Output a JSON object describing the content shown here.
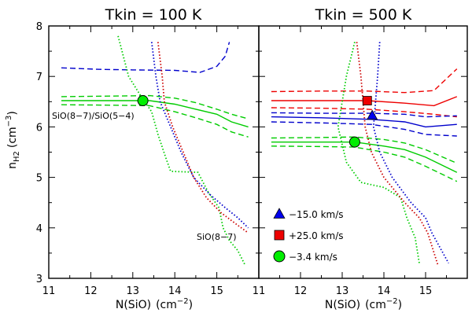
{
  "chart_data": {
    "type": "line",
    "xlabel": "N(SiO)",
    "xlabel_unit_base": "cm",
    "xlabel_unit_exp": "−2",
    "ylabel_base": "n",
    "ylabel_sub": "H2",
    "ylabel_unit_base": "cm",
    "ylabel_unit_exp": "−3",
    "xlim": [
      11,
      16
    ],
    "ylim": [
      3,
      8
    ],
    "panels": [
      {
        "title": "Tkin = 100 K",
        "xticks": [
          "11",
          "12",
          "13",
          "14",
          "15"
        ],
        "yticks": [
          "3",
          "4",
          "5",
          "6",
          "7",
          "8"
        ],
        "annotations": [
          {
            "text": "SiO(8−7)/SiO(5−4)",
            "x": 11.07,
            "y": 6.2
          },
          {
            "text": "SiO(8−7)",
            "x": 14.88,
            "y": 3.7
          }
        ],
        "series": [
          {
            "name": "blue-dashed",
            "color": "#0000cc",
            "dash": "7,4",
            "points": [
              [
                11.3,
                7.17
              ],
              [
                12.2,
                7.14
              ],
              [
                13.0,
                7.13
              ],
              [
                14.0,
                7.12
              ],
              [
                14.6,
                7.08
              ],
              [
                15.0,
                7.2
              ],
              [
                15.2,
                7.4
              ],
              [
                15.3,
                7.68
              ]
            ]
          },
          {
            "name": "green-solid",
            "color": "#00cc00",
            "dash": "",
            "points": [
              [
                11.3,
                6.52
              ],
              [
                12.5,
                6.52
              ],
              [
                13.4,
                6.52
              ],
              [
                14.0,
                6.45
              ],
              [
                14.5,
                6.35
              ],
              [
                15.0,
                6.25
              ],
              [
                15.35,
                6.1
              ],
              [
                15.75,
                6.0
              ]
            ]
          },
          {
            "name": "green-dashed-upper",
            "color": "#00cc00",
            "dash": "7,4",
            "points": [
              [
                11.3,
                6.6
              ],
              [
                12.5,
                6.61
              ],
              [
                13.4,
                6.62
              ],
              [
                14.0,
                6.57
              ],
              [
                14.5,
                6.48
              ],
              [
                15.0,
                6.35
              ],
              [
                15.35,
                6.25
              ],
              [
                15.75,
                6.16
              ]
            ]
          },
          {
            "name": "green-dashed-lower",
            "color": "#00cc00",
            "dash": "7,4",
            "points": [
              [
                11.3,
                6.44
              ],
              [
                12.5,
                6.43
              ],
              [
                13.4,
                6.42
              ],
              [
                14.0,
                6.3
              ],
              [
                14.5,
                6.18
              ],
              [
                15.0,
                6.05
              ],
              [
                15.35,
                5.9
              ],
              [
                15.75,
                5.8
              ]
            ]
          },
          {
            "name": "green-dotted",
            "color": "#00cc00",
            "dash": "1.5,2.5",
            "points": [
              [
                12.65,
                7.8
              ],
              [
                12.9,
                7.0
              ],
              [
                13.2,
                6.6
              ],
              [
                13.45,
                6.3
              ],
              [
                13.6,
                5.85
              ],
              [
                13.78,
                5.4
              ],
              [
                13.9,
                5.12
              ],
              [
                14.55,
                5.1
              ],
              [
                14.8,
                4.7
              ],
              [
                15.05,
                4.4
              ],
              [
                15.15,
                4.0
              ],
              [
                15.3,
                3.75
              ],
              [
                15.5,
                3.55
              ],
              [
                15.68,
                3.25
              ]
            ]
          },
          {
            "name": "red-dotted",
            "color": "#cc0000",
            "dash": "1.5,2.5",
            "points": [
              [
                13.6,
                7.68
              ],
              [
                13.7,
                7.0
              ],
              [
                13.75,
                6.5
              ],
              [
                13.95,
                6.0
              ],
              [
                14.2,
                5.5
              ],
              [
                14.45,
                5.0
              ],
              [
                14.75,
                4.6
              ],
              [
                15.1,
                4.3
              ],
              [
                15.5,
                4.05
              ],
              [
                15.75,
                3.9
              ]
            ]
          },
          {
            "name": "blue-dotted",
            "color": "#0000cc",
            "dash": "1.5,2.5",
            "points": [
              [
                13.45,
                7.68
              ],
              [
                13.55,
                7.0
              ],
              [
                13.65,
                6.5
              ],
              [
                13.9,
                6.0
              ],
              [
                14.15,
                5.5
              ],
              [
                14.45,
                5.0
              ],
              [
                14.85,
                4.65
              ],
              [
                15.2,
                4.4
              ],
              [
                15.5,
                4.2
              ],
              [
                15.75,
                4.0
              ]
            ]
          }
        ],
        "markers": [
          {
            "shape": "circle",
            "color": "#00ee00",
            "x": 13.24,
            "y": 6.52
          }
        ]
      },
      {
        "title": "Tkin = 500 K",
        "xticks": [
          "11",
          "12",
          "13",
          "14",
          "15"
        ],
        "yticks": [
          "3",
          "4",
          "5",
          "6",
          "7",
          "8"
        ],
        "annotations": [],
        "series": [
          {
            "name": "red-solid",
            "color": "#ee0000",
            "dash": "",
            "points": [
              [
                11.3,
                6.52
              ],
              [
                12.5,
                6.52
              ],
              [
                13.6,
                6.52
              ],
              [
                14.5,
                6.47
              ],
              [
                15.2,
                6.42
              ],
              [
                15.75,
                6.6
              ]
            ]
          },
          {
            "name": "red-dashed-upper",
            "color": "#ee0000",
            "dash": "7,4",
            "points": [
              [
                11.3,
                6.7
              ],
              [
                12.5,
                6.71
              ],
              [
                13.6,
                6.71
              ],
              [
                14.5,
                6.68
              ],
              [
                15.2,
                6.72
              ],
              [
                15.75,
                7.15
              ]
            ]
          },
          {
            "name": "red-dashed-lower",
            "color": "#ee0000",
            "dash": "7,4",
            "points": [
              [
                11.3,
                6.38
              ],
              [
                12.5,
                6.37
              ],
              [
                13.6,
                6.35
              ],
              [
                14.5,
                6.3
              ],
              [
                15.2,
                6.25
              ],
              [
                15.75,
                6.2
              ]
            ]
          },
          {
            "name": "blue-solid",
            "color": "#0000cc",
            "dash": "",
            "points": [
              [
                11.3,
                6.2
              ],
              [
                12.5,
                6.18
              ],
              [
                13.7,
                6.15
              ],
              [
                14.5,
                6.1
              ],
              [
                15.0,
                6.0
              ],
              [
                15.75,
                6.05
              ]
            ]
          },
          {
            "name": "blue-dashed-upper",
            "color": "#0000cc",
            "dash": "7,4",
            "points": [
              [
                11.3,
                6.28
              ],
              [
                12.5,
                6.27
              ],
              [
                13.7,
                6.27
              ],
              [
                14.5,
                6.25
              ],
              [
                15.0,
                6.2
              ],
              [
                15.75,
                6.22
              ]
            ]
          },
          {
            "name": "blue-dashed-lower",
            "color": "#0000cc",
            "dash": "7,4",
            "points": [
              [
                11.3,
                6.1
              ],
              [
                12.5,
                6.08
              ],
              [
                13.7,
                6.05
              ],
              [
                14.5,
                5.95
              ],
              [
                15.0,
                5.85
              ],
              [
                15.75,
                5.82
              ]
            ]
          },
          {
            "name": "green-solid",
            "color": "#00cc00",
            "dash": "",
            "points": [
              [
                11.3,
                5.7
              ],
              [
                12.5,
                5.7
              ],
              [
                13.3,
                5.7
              ],
              [
                14.0,
                5.62
              ],
              [
                14.5,
                5.55
              ],
              [
                15.0,
                5.4
              ],
              [
                15.75,
                5.1
              ]
            ]
          },
          {
            "name": "green-dashed-upper",
            "color": "#00cc00",
            "dash": "7,4",
            "points": [
              [
                11.3,
                5.78
              ],
              [
                12.5,
                5.79
              ],
              [
                13.3,
                5.8
              ],
              [
                14.0,
                5.75
              ],
              [
                14.5,
                5.68
              ],
              [
                15.0,
                5.55
              ],
              [
                15.75,
                5.28
              ]
            ]
          },
          {
            "name": "green-dashed-lower",
            "color": "#00cc00",
            "dash": "7,4",
            "points": [
              [
                11.3,
                5.62
              ],
              [
                12.5,
                5.61
              ],
              [
                13.3,
                5.6
              ],
              [
                14.0,
                5.5
              ],
              [
                14.5,
                5.4
              ],
              [
                15.0,
                5.22
              ],
              [
                15.75,
                4.92
              ]
            ]
          },
          {
            "name": "green-dotted",
            "color": "#00cc00",
            "dash": "1.5,2.5",
            "points": [
              [
                13.3,
                7.68
              ],
              [
                13.1,
                7.0
              ],
              [
                12.9,
                6.0
              ],
              [
                13.1,
                5.3
              ],
              [
                13.45,
                4.9
              ],
              [
                14.0,
                4.8
              ],
              [
                14.4,
                4.6
              ],
              [
                14.55,
                4.2
              ],
              [
                14.75,
                3.8
              ],
              [
                14.85,
                3.3
              ]
            ]
          },
          {
            "name": "red-dotted",
            "color": "#cc0000",
            "dash": "1.5,2.5",
            "points": [
              [
                13.35,
                7.68
              ],
              [
                13.45,
                7.0
              ],
              [
                13.5,
                6.5
              ],
              [
                13.55,
                6.0
              ],
              [
                13.7,
                5.5
              ],
              [
                14.0,
                5.0
              ],
              [
                14.5,
                4.5
              ],
              [
                14.85,
                4.2
              ],
              [
                15.05,
                3.9
              ],
              [
                15.3,
                3.25
              ]
            ]
          },
          {
            "name": "blue-dotted",
            "color": "#0000cc",
            "dash": "1.5,2.5",
            "points": [
              [
                13.9,
                7.68
              ],
              [
                13.85,
                7.0
              ],
              [
                13.8,
                6.5
              ],
              [
                13.75,
                6.0
              ],
              [
                13.9,
                5.5
              ],
              [
                14.2,
                5.0
              ],
              [
                14.65,
                4.5
              ],
              [
                15.0,
                4.2
              ],
              [
                15.15,
                3.9
              ],
              [
                15.55,
                3.3
              ]
            ]
          }
        ],
        "markers": [
          {
            "shape": "square",
            "color": "#ee0000",
            "x": 13.6,
            "y": 6.52
          },
          {
            "shape": "triangle",
            "color": "#0000ee",
            "x": 13.72,
            "y": 6.23
          },
          {
            "shape": "circle",
            "color": "#00ee00",
            "x": 13.3,
            "y": 5.7
          }
        ],
        "legend": [
          {
            "shape": "triangle",
            "color": "#0000ee",
            "label": "−15.0 km/s"
          },
          {
            "shape": "square",
            "color": "#ee0000",
            "label": "+25.0 km/s"
          },
          {
            "shape": "circle",
            "color": "#00ee00",
            "label": "−3.4 km/s"
          }
        ]
      }
    ]
  }
}
